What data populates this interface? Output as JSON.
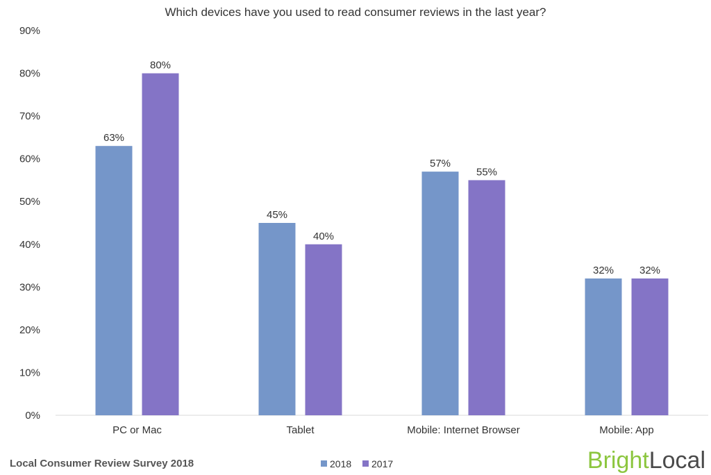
{
  "chart_data": {
    "type": "bar",
    "title": "Which devices have you used to read consumer reviews in the last year?",
    "categories": [
      "PC or Mac",
      "Tablet",
      "Mobile: Internet Browser",
      "Mobile: App"
    ],
    "series": [
      {
        "name": "2018",
        "color": "#7596c9",
        "values": [
          63,
          45,
          57,
          32
        ],
        "labels": [
          "63%",
          "45%",
          "57%",
          "32%"
        ]
      },
      {
        "name": "2017",
        "color": "#8474c6",
        "values": [
          80,
          40,
          55,
          32
        ],
        "labels": [
          "80%",
          "40%",
          "55%",
          "32%"
        ]
      }
    ],
    "ylim": [
      0,
      90
    ],
    "yticks": [
      {
        "value": 0,
        "label": "0%"
      },
      {
        "value": 10,
        "label": "10%"
      },
      {
        "value": 20,
        "label": "20%"
      },
      {
        "value": 30,
        "label": "30%"
      },
      {
        "value": 40,
        "label": "40%"
      },
      {
        "value": 50,
        "label": "50%"
      },
      {
        "value": 60,
        "label": "60%"
      },
      {
        "value": 70,
        "label": "70%"
      },
      {
        "value": 80,
        "label": "80%"
      },
      {
        "value": 90,
        "label": "90%"
      }
    ],
    "grid": false,
    "legend": "bottom-center"
  },
  "footer": {
    "source": "Local Consumer Review Survey 2018"
  },
  "logo": {
    "part1": "Bright",
    "part2": "Local"
  }
}
